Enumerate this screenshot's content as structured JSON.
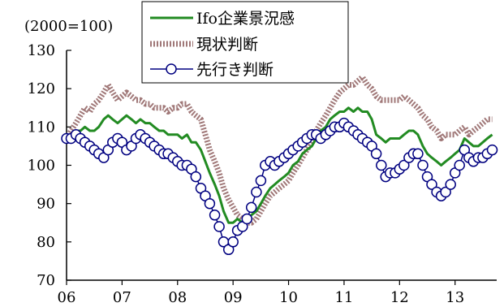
{
  "chart_data": {
    "type": "line",
    "title": "",
    "ylabel": "(2000=100)",
    "xlabel": "",
    "ylim": [
      70,
      130
    ],
    "yticks": [
      70,
      80,
      90,
      100,
      110,
      120,
      130
    ],
    "xlim": [
      2006,
      2013.75
    ],
    "xticks": [
      {
        "label": "06",
        "x": 2006
      },
      {
        "label": "07",
        "x": 2007
      },
      {
        "label": "08",
        "x": 2008
      },
      {
        "label": "09",
        "x": 2009
      },
      {
        "label": "10",
        "x": 2010
      },
      {
        "label": "11",
        "x": 2011
      },
      {
        "label": "12",
        "x": 2012
      },
      {
        "label": "13",
        "x": 2013
      }
    ],
    "grid": false,
    "legend": "top-center",
    "series": [
      {
        "name": "Ifo企業景況感",
        "color": "#228B22",
        "style": "solid",
        "x": [
          2006.0,
          2006.08,
          2006.17,
          2006.25,
          2006.33,
          2006.42,
          2006.5,
          2006.58,
          2006.67,
          2006.75,
          2006.83,
          2006.92,
          2007.0,
          2007.08,
          2007.17,
          2007.25,
          2007.33,
          2007.42,
          2007.5,
          2007.58,
          2007.67,
          2007.75,
          2007.83,
          2007.92,
          2008.0,
          2008.08,
          2008.17,
          2008.25,
          2008.33,
          2008.42,
          2008.5,
          2008.58,
          2008.67,
          2008.75,
          2008.83,
          2008.92,
          2009.0,
          2009.08,
          2009.17,
          2009.25,
          2009.33,
          2009.42,
          2009.5,
          2009.58,
          2009.67,
          2009.75,
          2009.83,
          2009.92,
          2010.0,
          2010.08,
          2010.17,
          2010.25,
          2010.33,
          2010.42,
          2010.5,
          2010.58,
          2010.67,
          2010.75,
          2010.83,
          2010.92,
          2011.0,
          2011.08,
          2011.17,
          2011.25,
          2011.33,
          2011.42,
          2011.5,
          2011.58,
          2011.67,
          2011.75,
          2011.83,
          2011.92,
          2012.0,
          2012.08,
          2012.17,
          2012.25,
          2012.33,
          2012.42,
          2012.5,
          2012.58,
          2012.67,
          2012.75,
          2012.83,
          2012.92,
          2013.0,
          2013.08,
          2013.17,
          2013.25,
          2013.33,
          2013.42,
          2013.5,
          2013.58,
          2013.67
        ],
        "values": [
          107,
          108,
          109,
          109,
          110,
          109,
          109,
          110,
          112,
          113,
          112,
          111,
          112,
          113,
          112,
          111,
          112,
          111,
          111,
          110,
          109,
          109,
          108,
          108,
          108,
          107,
          108,
          106,
          106,
          104,
          101,
          98,
          95,
          92,
          88,
          85,
          85,
          86,
          85,
          86,
          87,
          88,
          90,
          92,
          94,
          95,
          96,
          97,
          98,
          100,
          101,
          103,
          104,
          105,
          107,
          109,
          110,
          112,
          113,
          114,
          114,
          115,
          114,
          115,
          114,
          114,
          112,
          108,
          107,
          106,
          107,
          107,
          107,
          108,
          109,
          109,
          108,
          105,
          103,
          102,
          101,
          100,
          101,
          102,
          103,
          104,
          107,
          106,
          105,
          105,
          106,
          107,
          108
        ]
      },
      {
        "name": "現状判断",
        "color": "#A07878",
        "style": "dotted",
        "x": [
          2006.0,
          2006.08,
          2006.17,
          2006.25,
          2006.33,
          2006.42,
          2006.5,
          2006.58,
          2006.67,
          2006.75,
          2006.83,
          2006.92,
          2007.0,
          2007.08,
          2007.17,
          2007.25,
          2007.33,
          2007.42,
          2007.5,
          2007.58,
          2007.67,
          2007.75,
          2007.83,
          2007.92,
          2008.0,
          2008.08,
          2008.17,
          2008.25,
          2008.33,
          2008.42,
          2008.5,
          2008.58,
          2008.67,
          2008.75,
          2008.83,
          2008.92,
          2009.0,
          2009.08,
          2009.17,
          2009.25,
          2009.33,
          2009.42,
          2009.5,
          2009.58,
          2009.67,
          2009.75,
          2009.83,
          2009.92,
          2010.0,
          2010.08,
          2010.17,
          2010.25,
          2010.33,
          2010.42,
          2010.5,
          2010.58,
          2010.67,
          2010.75,
          2010.83,
          2010.92,
          2011.0,
          2011.08,
          2011.17,
          2011.25,
          2011.33,
          2011.42,
          2011.5,
          2011.58,
          2011.67,
          2011.75,
          2011.83,
          2011.92,
          2012.0,
          2012.08,
          2012.17,
          2012.25,
          2012.33,
          2012.42,
          2012.5,
          2012.58,
          2012.67,
          2012.75,
          2012.83,
          2012.92,
          2013.0,
          2013.08,
          2013.17,
          2013.25,
          2013.33,
          2013.42,
          2013.5,
          2013.58,
          2013.67
        ],
        "values": [
          107,
          109,
          111,
          113,
          115,
          114,
          116,
          117,
          119,
          121,
          119,
          117,
          118,
          119,
          118,
          117,
          117,
          116,
          116,
          115,
          115,
          115,
          114,
          115,
          115,
          116,
          116,
          114,
          113,
          112,
          108,
          104,
          101,
          98,
          94,
          91,
          89,
          87,
          86,
          85,
          85,
          86,
          88,
          90,
          92,
          93,
          94,
          95,
          96,
          98,
          100,
          102,
          104,
          106,
          109,
          111,
          113,
          115,
          117,
          119,
          120,
          121,
          121,
          122,
          123,
          121,
          120,
          118,
          117,
          117,
          117,
          117,
          117,
          118,
          117,
          116,
          115,
          113,
          112,
          110,
          109,
          107,
          108,
          108,
          108,
          109,
          110,
          108,
          109,
          110,
          111,
          112,
          112
        ]
      },
      {
        "name": "先行き判断",
        "color": "#000080",
        "style": "solid-markers",
        "x": [
          2006.0,
          2006.08,
          2006.17,
          2006.25,
          2006.33,
          2006.42,
          2006.5,
          2006.58,
          2006.67,
          2006.75,
          2006.83,
          2006.92,
          2007.0,
          2007.08,
          2007.17,
          2007.25,
          2007.33,
          2007.42,
          2007.5,
          2007.58,
          2007.67,
          2007.75,
          2007.83,
          2007.92,
          2008.0,
          2008.08,
          2008.17,
          2008.25,
          2008.33,
          2008.42,
          2008.5,
          2008.58,
          2008.67,
          2008.75,
          2008.83,
          2008.92,
          2009.0,
          2009.08,
          2009.17,
          2009.25,
          2009.33,
          2009.42,
          2009.5,
          2009.58,
          2009.67,
          2009.75,
          2009.83,
          2009.92,
          2010.0,
          2010.08,
          2010.17,
          2010.25,
          2010.33,
          2010.42,
          2010.5,
          2010.58,
          2010.67,
          2010.75,
          2010.83,
          2010.92,
          2011.0,
          2011.08,
          2011.17,
          2011.25,
          2011.33,
          2011.42,
          2011.5,
          2011.58,
          2011.67,
          2011.75,
          2011.83,
          2011.92,
          2012.0,
          2012.08,
          2012.17,
          2012.25,
          2012.33,
          2012.42,
          2012.5,
          2012.58,
          2012.67,
          2012.75,
          2012.83,
          2012.92,
          2013.0,
          2013.08,
          2013.17,
          2013.25,
          2013.33,
          2013.42,
          2013.5,
          2013.58,
          2013.67
        ],
        "values": [
          107,
          107,
          108,
          107,
          106,
          105,
          104,
          103,
          102,
          104,
          106,
          107,
          106,
          104,
          105,
          107,
          108,
          107,
          106,
          105,
          104,
          103,
          103,
          102,
          101,
          100,
          100,
          99,
          97,
          94,
          92,
          90,
          87,
          84,
          80,
          78,
          80,
          83,
          84,
          86,
          89,
          93,
          96,
          100,
          101,
          100,
          101,
          102,
          103,
          104,
          105,
          106,
          107,
          108,
          108,
          107,
          108,
          109,
          110,
          110,
          111,
          110,
          109,
          108,
          107,
          106,
          105,
          103,
          100,
          97,
          98,
          98,
          99,
          100,
          102,
          103,
          103,
          100,
          97,
          95,
          93,
          92,
          93,
          95,
          98,
          100,
          104,
          102,
          101,
          102,
          102,
          103,
          104
        ]
      }
    ]
  }
}
